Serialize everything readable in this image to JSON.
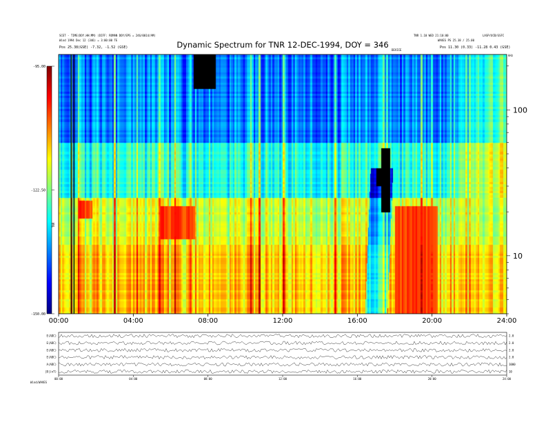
{
  "chart_data": {
    "type": "heatmap",
    "title": "Dynamic Spectrum for TNR 12-DEC-1994, DOY = 346",
    "header_left": [
      "SCET - TIME(DOY.HH:MM) (DIFF: ROMAN DOY/EPS = 246/0014/AM)",
      "Wind 1994 Dec 12 (346) = 3:00:00 TE",
      "Pos   25.38(GSE) -7.32, -1.52 (GSE)"
    ],
    "header_right": [
      "TNR 1.10 WED 21:10:00",
      "LASP/UCB/GSFC",
      "WAVES PS 25.38 / 25.00",
      "Pos   11.30 (0.33) -11.28 0.43 (GSE)"
    ],
    "mark_label": "DEVICE",
    "colorbar": {
      "ticks": [
        {
          "label": "-95.00",
          "value": -95
        },
        {
          "label": "-122.50",
          "value": -122.5
        },
        {
          "label": "-150.00",
          "value": -150
        }
      ],
      "axis_label": "TNR",
      "range": [
        -150,
        -95
      ],
      "colors": [
        "#00007f",
        "#0000ff",
        "#007fff",
        "#00ffff",
        "#7fff7f",
        "#ffff00",
        "#ff7f00",
        "#ff0000",
        "#7f0000"
      ]
    },
    "x_range": [
      0,
      24
    ],
    "x_ticks": [
      {
        "label": "00:00",
        "value": 0
      },
      {
        "label": "04:00",
        "value": 4
      },
      {
        "label": "08:00",
        "value": 8
      },
      {
        "label": "12:00",
        "value": 12
      },
      {
        "label": "16:00",
        "value": 16
      },
      {
        "label": "20:00",
        "value": 20
      },
      {
        "label": "24:00",
        "value": 24
      }
    ],
    "y_scale": "log",
    "y_range": [
      4,
      240
    ],
    "y_ticks": [
      {
        "label": "100",
        "value": 100
      },
      {
        "label": "10",
        "value": 10
      }
    ],
    "y_unit": "kHz",
    "features": {
      "background_levels": [
        {
          "f_min": 4,
          "f_max": 12,
          "level": 0.67
        },
        {
          "f_min": 12,
          "f_max": 25,
          "level": 0.58
        },
        {
          "f_min": 25,
          "f_max": 60,
          "level": 0.4
        },
        {
          "f_min": 60,
          "f_max": 240,
          "level": 0.25
        }
      ],
      "black_patches": [
        {
          "t0": 17.25,
          "t1": 17.75,
          "f_min": 20,
          "f_max": 55
        },
        {
          "t0": 7.2,
          "t1": 8.4,
          "f_min": 140,
          "f_max": 240
        },
        {
          "t0": 17.0,
          "t1": 17.5,
          "f_min": 30,
          "f_max": 40
        }
      ],
      "red_zones": [
        {
          "t0": 18.0,
          "t1": 20.3,
          "f_min": 4,
          "f_max": 22
        },
        {
          "t0": 5.4,
          "t1": 7.3,
          "f_min": 13,
          "f_max": 22
        },
        {
          "t0": 1.0,
          "t1": 1.8,
          "f_min": 18,
          "f_max": 24
        }
      ],
      "vertical_lines": [
        {
          "t": 0.65,
          "color": "#000000"
        },
        {
          "t": 0.8,
          "color": "#000000"
        }
      ],
      "noise_seed": 346
    },
    "strips": {
      "rows": [
        {
          "label": "E(ADC)",
          "value_label": "2.0"
        },
        {
          "label": "E(ADC)",
          "value_label": "2.0"
        },
        {
          "label": "E(ADC)",
          "value_label": "2.0"
        },
        {
          "label": "E(ADC)",
          "value_label": "2.0"
        },
        {
          "label": "A(ADC)",
          "value_label": "1000"
        },
        {
          "label": "|B|(nT)",
          "value_label": "10"
        }
      ],
      "x_ticks": [
        {
          "label": "00:00",
          "value": 0
        },
        {
          "label": "04:00",
          "value": 4
        },
        {
          "label": "08:00",
          "value": 8
        },
        {
          "label": "12:00",
          "value": 12
        },
        {
          "label": "16:00",
          "value": 16
        },
        {
          "label": "20:00",
          "value": 20
        },
        {
          "label": "24:00",
          "value": 24
        }
      ],
      "footer": "Wind/WAVES"
    }
  }
}
